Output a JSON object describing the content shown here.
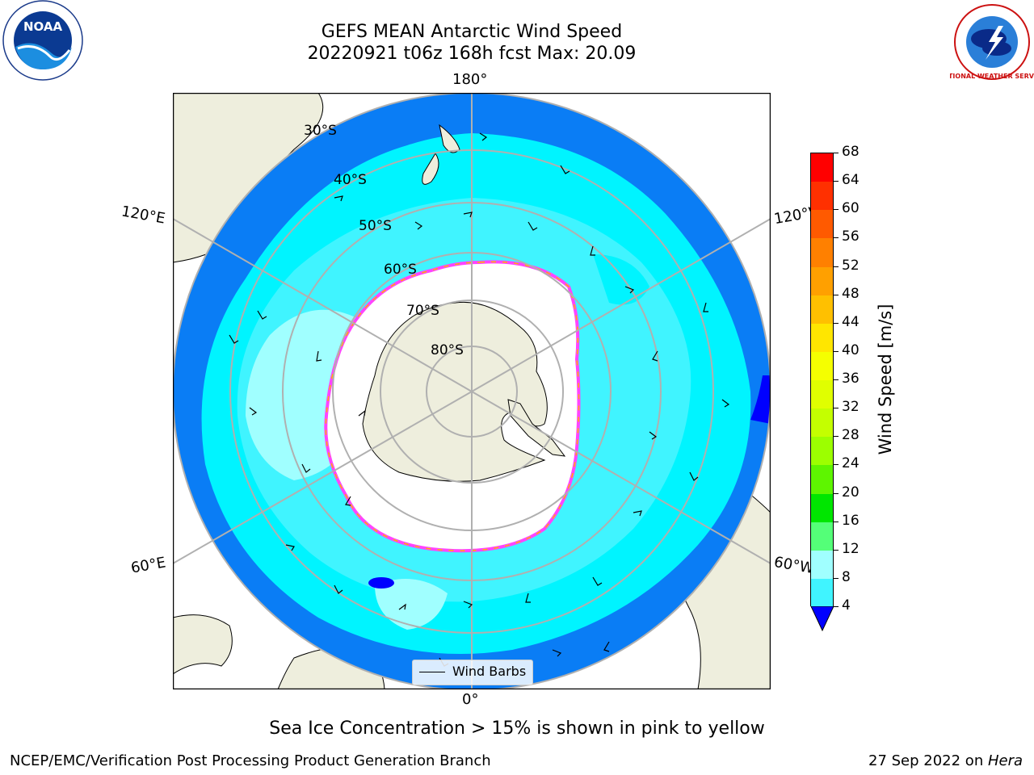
{
  "title": {
    "line1": "GEFS MEAN Antarctic Wind Speed",
    "line2": "20220921 t06z 168h fcst   Max: 20.09"
  },
  "map": {
    "projection": "south-polar-stereographic",
    "lon_labels": {
      "top": "180°",
      "bottom": "0°",
      "upper_left": "120°E",
      "upper_right": "120°W",
      "lower_left": "60°E",
      "lower_right": "60°W"
    },
    "lat_labels": [
      "30°S",
      "40°S",
      "50°S",
      "60°S",
      "70°S",
      "80°S"
    ],
    "colors": {
      "land": "#eeeedd",
      "ocean_4_8": "#0a7df5",
      "ocean_8_12": "#00f4ff",
      "ocean_12_16": "#40f4ff",
      "ocean_16_20": "#a0ffff",
      "sea_ice": "#ffffff",
      "ice_edge_pink": "#ff44ff",
      "ice_edge_yellow": "#ffb400"
    }
  },
  "legend": {
    "label": "Wind Barbs"
  },
  "colorbar": {
    "title": "Wind Speed [m/s]",
    "ticks": [
      "68",
      "64",
      "60",
      "56",
      "52",
      "48",
      "44",
      "40",
      "36",
      "32",
      "28",
      "24",
      "20",
      "16",
      "12",
      "8",
      "4"
    ],
    "colors": [
      "#ff0000",
      "#ff3000",
      "#ff5a00",
      "#ff8000",
      "#ffa000",
      "#ffc000",
      "#ffe600",
      "#f5ff00",
      "#e0ff00",
      "#c4ff00",
      "#9cff00",
      "#5ef500",
      "#00e600",
      "#54ff78",
      "#a0ffff",
      "#40f4ff",
      "#00f4ff",
      "#0a7df5"
    ],
    "extend_color": "#0000ff"
  },
  "caption": "Sea Ice Concentration > 15% is shown in pink to yellow",
  "footer": {
    "left": "NCEP/EMC/Verification Post Processing Product Generation Branch",
    "date": "27 Sep 2022 on ",
    "machine": "Hera"
  },
  "logos": {
    "left": "NOAA",
    "right": "NATIONAL WEATHER SERVICE"
  }
}
